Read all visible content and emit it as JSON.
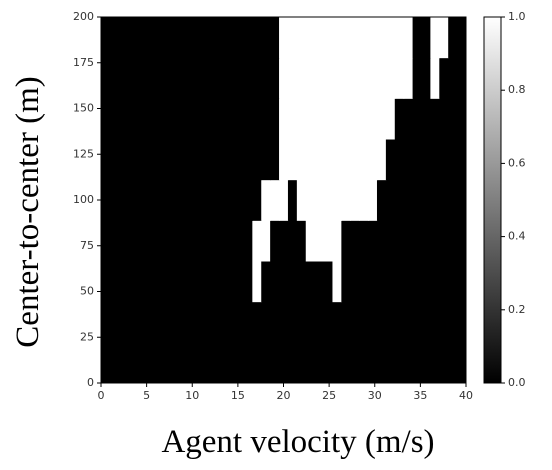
{
  "chart_data": {
    "type": "heatmap",
    "xlabel": "Agent velocity (m/s)",
    "ylabel": "Center-to-center (m)",
    "xlim": [
      0,
      40
    ],
    "ylim": [
      0,
      200
    ],
    "xticks": [
      0,
      5,
      10,
      15,
      20,
      25,
      30,
      35,
      40
    ],
    "yticks": [
      0,
      25,
      50,
      75,
      100,
      125,
      150,
      175,
      200
    ],
    "colors": [
      "#000000",
      "#ffffff"
    ],
    "clim": [
      0,
      1
    ],
    "cticks": [
      {
        "value": 0,
        "label": "0.0"
      },
      {
        "value": 0.2,
        "label": "0.2"
      },
      {
        "value": 0.4,
        "label": "0.4"
      },
      {
        "value": 0.6,
        "label": "0.6"
      },
      {
        "value": 0.8,
        "label": "0.8"
      },
      {
        "value": 1,
        "label": "1.0"
      }
    ],
    "z": [
      [
        0,
        0,
        0,
        0,
        0,
        0,
        0,
        0,
        0,
        0,
        0,
        0,
        0,
        0,
        0,
        0,
        0,
        0,
        0,
        0,
        0,
        0,
        0,
        0,
        0,
        0,
        0,
        0,
        0,
        0,
        0,
        0,
        0,
        0,
        0,
        0,
        0,
        0,
        0,
        0,
        0
      ],
      [
        0,
        0,
        0,
        0,
        0,
        0,
        0,
        0,
        0,
        0,
        0,
        0,
        0,
        0,
        0,
        0,
        0,
        0,
        0,
        0,
        0,
        0,
        0,
        0,
        0,
        0,
        0,
        0,
        0,
        0,
        0,
        0,
        0,
        0,
        0,
        0,
        0,
        0,
        0,
        0,
        0
      ],
      [
        0,
        0,
        0,
        0,
        0,
        0,
        0,
        0,
        0,
        0,
        0,
        0,
        0,
        0,
        0,
        0,
        0,
        1,
        0,
        0,
        0,
        0,
        0,
        0,
        0,
        0,
        1,
        0,
        0,
        0,
        0,
        0,
        0,
        0,
        0,
        0,
        0,
        0,
        0,
        0,
        0
      ],
      [
        0,
        0,
        0,
        0,
        0,
        0,
        0,
        0,
        0,
        0,
        0,
        0,
        0,
        0,
        0,
        0,
        0,
        1,
        1,
        0,
        0,
        0,
        0,
        1,
        1,
        1,
        1,
        0,
        0,
        0,
        0,
        0,
        0,
        0,
        0,
        0,
        0,
        0,
        0,
        0,
        0
      ],
      [
        0,
        0,
        0,
        0,
        0,
        0,
        0,
        0,
        0,
        0,
        0,
        0,
        0,
        0,
        0,
        0,
        0,
        0,
        1,
        1,
        1,
        0,
        1,
        1,
        1,
        1,
        1,
        1,
        1,
        1,
        1,
        0,
        0,
        0,
        0,
        0,
        0,
        0,
        0,
        0,
        0
      ],
      [
        0,
        0,
        0,
        0,
        0,
        0,
        0,
        0,
        0,
        0,
        0,
        0,
        0,
        0,
        0,
        0,
        0,
        0,
        0,
        0,
        1,
        1,
        1,
        1,
        1,
        1,
        1,
        1,
        1,
        1,
        1,
        1,
        0,
        0,
        0,
        0,
        0,
        0,
        0,
        0,
        0
      ],
      [
        0,
        0,
        0,
        0,
        0,
        0,
        0,
        0,
        0,
        0,
        0,
        0,
        0,
        0,
        0,
        0,
        0,
        0,
        0,
        0,
        1,
        1,
        1,
        1,
        1,
        1,
        1,
        1,
        1,
        1,
        1,
        1,
        1,
        0,
        0,
        0,
        0,
        0,
        0,
        0,
        0
      ],
      [
        0,
        0,
        0,
        0,
        0,
        0,
        0,
        0,
        0,
        0,
        0,
        0,
        0,
        0,
        0,
        0,
        0,
        0,
        0,
        0,
        1,
        1,
        1,
        1,
        1,
        1,
        1,
        1,
        1,
        1,
        1,
        1,
        1,
        1,
        1,
        0,
        0,
        1,
        0,
        0,
        0
      ],
      [
        0,
        0,
        0,
        0,
        0,
        0,
        0,
        0,
        0,
        0,
        0,
        0,
        0,
        0,
        0,
        0,
        0,
        0,
        0,
        0,
        1,
        1,
        1,
        1,
        1,
        1,
        1,
        1,
        1,
        1,
        1,
        1,
        1,
        1,
        1,
        0,
        0,
        1,
        1,
        0,
        0
      ]
    ]
  }
}
